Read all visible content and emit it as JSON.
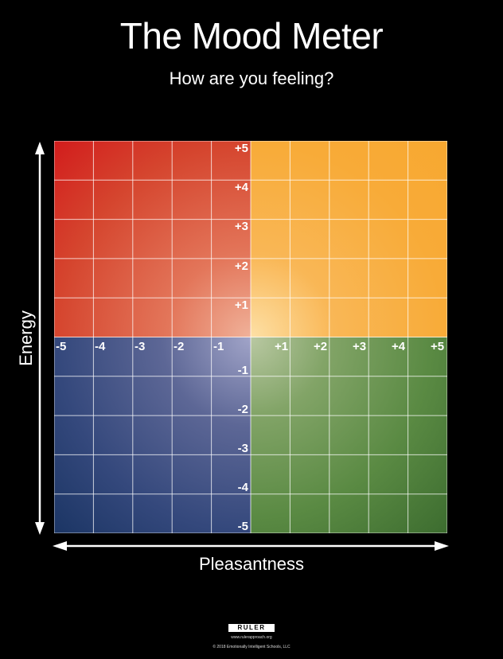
{
  "title": "The Mood Meter",
  "subtitle": "How are you feeling?",
  "y_axis": {
    "label": "Energy",
    "positive_ticks": [
      "+5",
      "+4",
      "+3",
      "+2",
      "+1"
    ],
    "negative_ticks": [
      "-1",
      "-2",
      "-3",
      "-4",
      "-5"
    ]
  },
  "x_axis": {
    "label": "Pleasantness",
    "negative_ticks": [
      "-5",
      "-4",
      "-3",
      "-2",
      "-1"
    ],
    "positive_ticks": [
      "+1",
      "+2",
      "+3",
      "+4",
      "+5"
    ]
  },
  "quadrants": {
    "high_energy_unpleasant": "#d21c1c",
    "high_energy_pleasant": "#f7a830",
    "low_energy_unpleasant": "#1b3564",
    "low_energy_pleasant": "#3c6c2f"
  },
  "footer": {
    "logo_text": "RULER",
    "url": "www.rulerapproach.org",
    "copyright": "© 2018 Emotionally Intelligent Schools, LLC"
  }
}
